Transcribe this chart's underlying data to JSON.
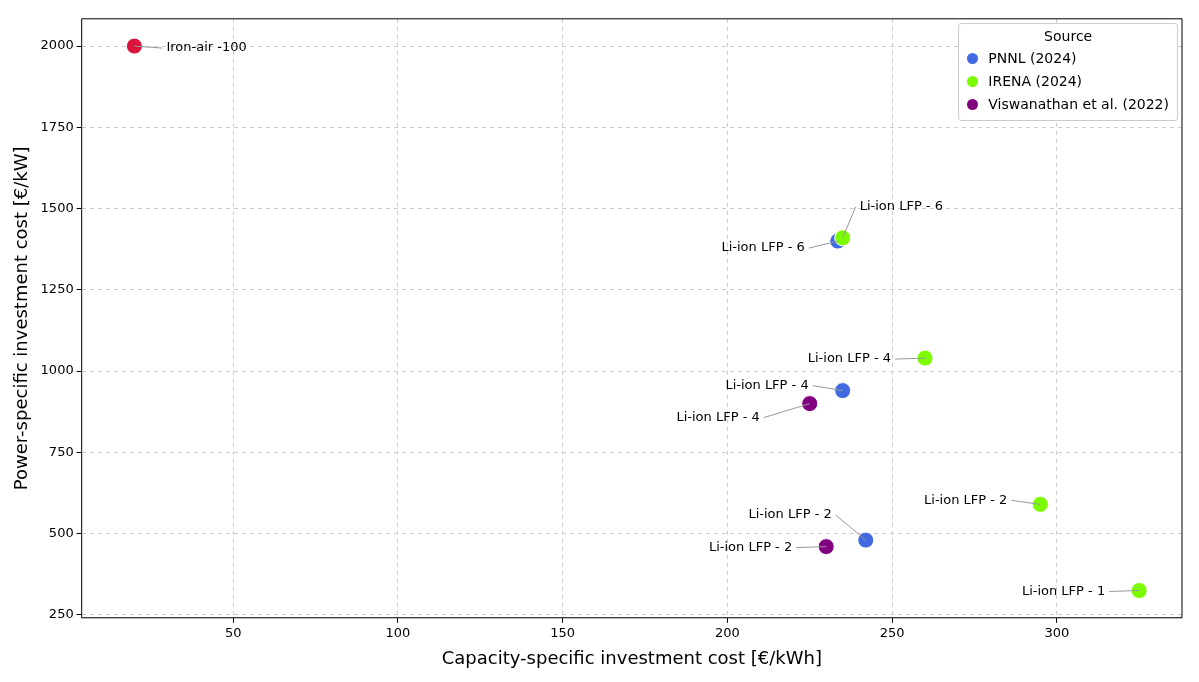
{
  "chart_data": {
    "type": "scatter",
    "xlabel": "Capacity-specific investment cost [€/kWh]",
    "ylabel": "Power-specific investment cost [€/kW]",
    "legend_title": "Source",
    "legend": "top right",
    "grid": true,
    "marker": "circle",
    "xlim": [
      4,
      338
    ],
    "xticks": [
      50,
      100,
      150,
      200,
      250,
      300
    ],
    "ylim": [
      241,
      2084
    ],
    "yticks": [
      250,
      500,
      750,
      1000,
      1250,
      1500,
      1750,
      2000
    ],
    "series": [
      {
        "name": "PNNL (2024)",
        "color": "#4169e1",
        "x": [
          233.5,
          235,
          242
        ],
        "values": [
          1400,
          940,
          480
        ]
      },
      {
        "name": "IRENA (2024)",
        "color": "#7cfc00",
        "x": [
          235,
          260,
          295,
          325
        ],
        "values": [
          1410,
          1040,
          590,
          325
        ]
      },
      {
        "color": "#dc143c",
        "x": [
          20
        ],
        "values": [
          2000
        ]
      },
      {
        "name": "Viswanathan et al. (2022)",
        "color": "#800080",
        "x": [
          225,
          230
        ],
        "values": [
          900,
          460
        ]
      }
    ],
    "annotations": [
      {
        "text": "Iron-air -100",
        "x": 20,
        "y": 2000
      },
      {
        "text": "Li-ion LFP - 6",
        "x": 233.5,
        "y": 1400
      },
      {
        "text": "Li-ion LFP - 6",
        "x": 235,
        "y": 1410
      },
      {
        "text": "Li-ion LFP - 4",
        "x": 260,
        "y": 1040
      },
      {
        "text": "Li-ion LFP - 4",
        "x": 235,
        "y": 940
      },
      {
        "text": "Li-ion LFP - 4",
        "x": 225,
        "y": 900
      },
      {
        "text": "Li-ion LFP - 2",
        "x": 295,
        "y": 590
      },
      {
        "text": "Li-ion LFP - 2",
        "x": 242,
        "y": 480
      },
      {
        "text": "Li-ion LFP - 2",
        "x": 230,
        "y": 460
      },
      {
        "text": "Li-ion LFP - 1",
        "x": 325,
        "y": 325
      }
    ]
  }
}
